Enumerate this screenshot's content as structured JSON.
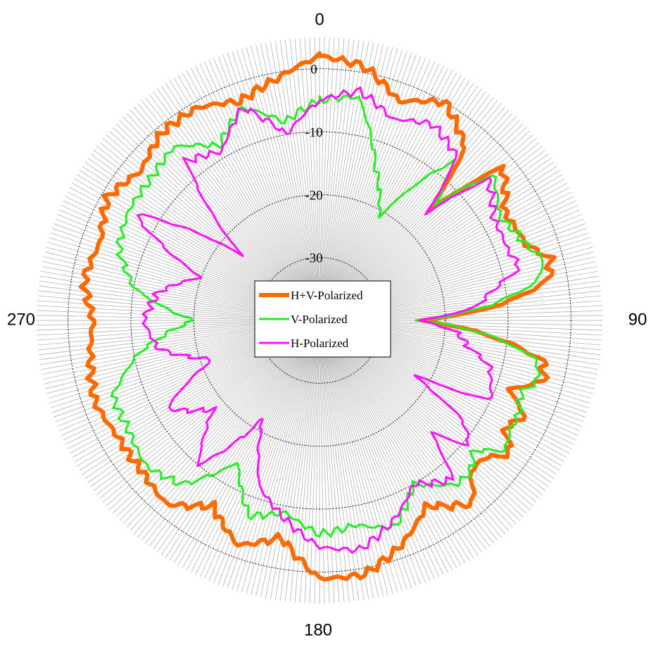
{
  "chart_data": {
    "type": "line",
    "coordinate_system": "polar",
    "angle_direction": "clockwise",
    "angle_zero": "top",
    "angle_tick_labels": [
      "0",
      "90",
      "180",
      "270"
    ],
    "radial_tick_labels": [
      "0",
      "-10",
      "-20",
      "-30"
    ],
    "radial_ticks": [
      0,
      -10,
      -20,
      -30
    ],
    "rlim": [
      -40,
      5
    ],
    "radial_gridlines": "dotted circles",
    "angular_spokes_every_deg": 1,
    "legend_placement": "center",
    "series": [
      {
        "name": "H+V-Polarized",
        "color": "#ff6a00",
        "line_width": "thick",
        "x_deg": [
          0,
          10,
          20,
          30,
          40,
          45,
          50,
          60,
          70,
          75,
          80,
          85,
          90,
          95,
          100,
          105,
          110,
          115,
          120,
          125,
          130,
          135,
          140,
          150,
          160,
          170,
          180,
          190,
          200,
          210,
          220,
          230,
          240,
          250,
          260,
          270,
          280,
          290,
          300,
          310,
          320,
          330,
          340,
          350,
          360
        ],
        "values": [
          2,
          1,
          -3,
          0,
          -4,
          -15,
          -2,
          -6,
          -5,
          -2,
          -3,
          -11,
          -24,
          -13,
          -4,
          -3,
          -8,
          -4,
          -6,
          -3,
          -6,
          -6,
          -2,
          -6,
          -2,
          1,
          1,
          -5,
          -2,
          -6,
          -2,
          -3,
          -3,
          -2,
          -3,
          -4,
          -2,
          -3,
          -1,
          -3,
          -1,
          -1,
          -3,
          -1,
          2
        ]
      },
      {
        "name": "V-Polarized",
        "color": "#22ee22",
        "line_width": "medium",
        "x_deg": [
          0,
          10,
          20,
          30,
          40,
          45,
          50,
          60,
          70,
          75,
          80,
          85,
          90,
          95,
          100,
          105,
          110,
          115,
          120,
          125,
          130,
          135,
          140,
          150,
          160,
          170,
          180,
          190,
          200,
          210,
          220,
          230,
          240,
          250,
          260,
          270,
          280,
          290,
          300,
          310,
          320,
          330,
          340,
          350,
          360
        ],
        "values": [
          -5,
          -4,
          -14,
          -21,
          -7,
          -14,
          -4,
          -7,
          -5,
          -3,
          -5,
          -13,
          -24,
          -13,
          -5,
          -4,
          -6,
          -5,
          -5,
          -4,
          -8,
          -6,
          -6,
          -10,
          -5,
          -7,
          -6,
          -9,
          -7,
          -14,
          -6,
          -4,
          -5,
          -5,
          -11,
          -20,
          -10,
          -6,
          -5,
          -5,
          -4,
          -8,
          -4,
          -8,
          -5
        ]
      },
      {
        "name": "H-Polarized",
        "color": "#ff10ff",
        "line_width": "medium",
        "x_deg": [
          0,
          10,
          20,
          30,
          40,
          45,
          50,
          60,
          70,
          75,
          80,
          85,
          90,
          95,
          100,
          105,
          110,
          115,
          120,
          125,
          130,
          135,
          140,
          150,
          160,
          170,
          180,
          190,
          200,
          210,
          220,
          230,
          240,
          250,
          260,
          270,
          280,
          290,
          300,
          310,
          320,
          330,
          340,
          350,
          360
        ],
        "values": [
          -5,
          -3,
          -6,
          -4,
          -6,
          -16,
          -5,
          -8,
          -8,
          -7,
          -12,
          -15,
          -24,
          -18,
          -16,
          -12,
          -11,
          -10,
          -23,
          -12,
          -9,
          -15,
          -7,
          -10,
          -6,
          -3,
          -4,
          -8,
          -12,
          -22,
          -10,
          -18,
          -12,
          -22,
          -14,
          -12,
          -14,
          -20,
          -6,
          -24,
          -7,
          -9,
          -4,
          -10,
          -5
        ]
      }
    ]
  }
}
